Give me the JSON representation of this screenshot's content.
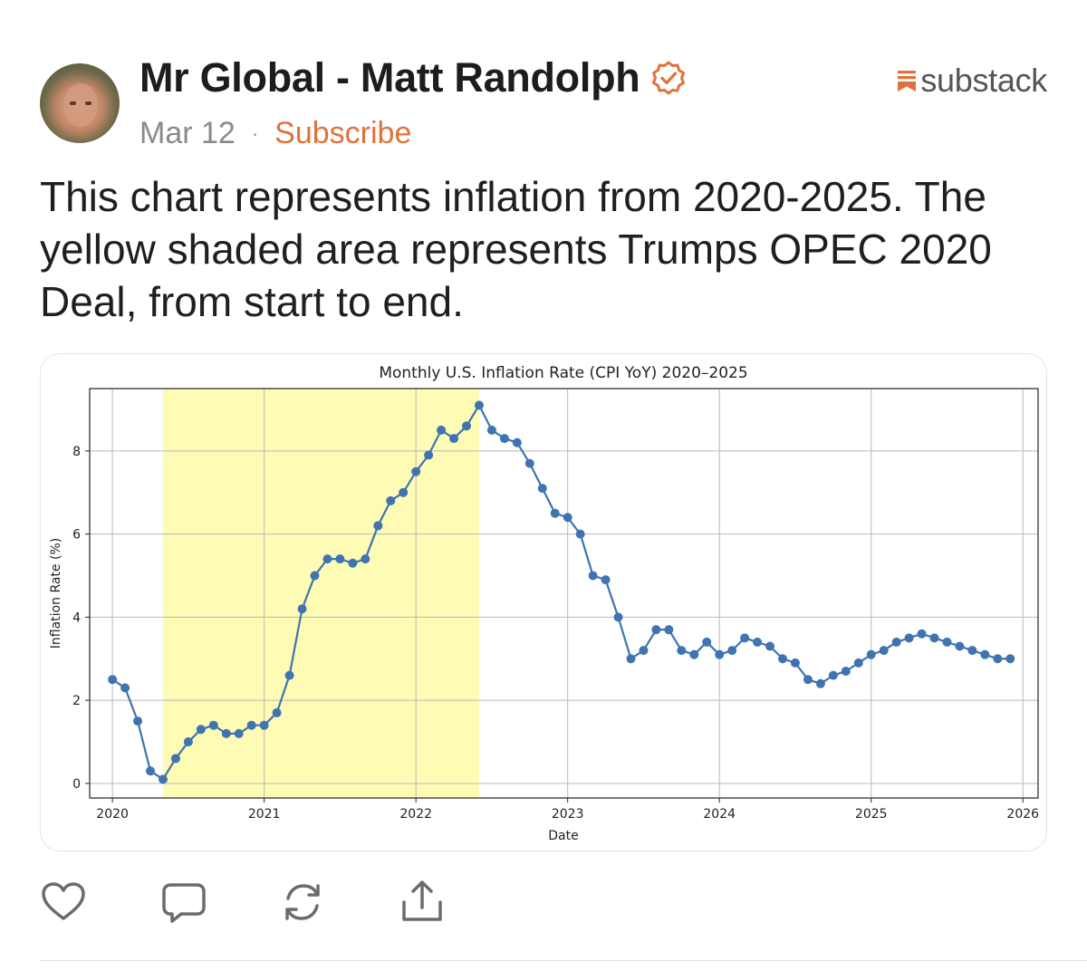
{
  "post": {
    "author": "Mr Global - Matt Randolph",
    "date": "Mar 12",
    "separator": "·",
    "subscribe_label": "Subscribe",
    "brand": "substack",
    "text": "This chart represents inflation from 2020-2025. The yellow shaded area represents Trumps OPEC 2020 Deal, from start to end."
  },
  "colors": {
    "accent": "#e0723a",
    "line": "#3f74b0",
    "shade": "#fdfbb4"
  },
  "actions": [
    {
      "name": "like",
      "icon": "heart-icon"
    },
    {
      "name": "comment",
      "icon": "comment-icon"
    },
    {
      "name": "restack",
      "icon": "restack-icon"
    },
    {
      "name": "share",
      "icon": "share-icon"
    }
  ],
  "chart_data": {
    "type": "line",
    "title": "Monthly U.S. Inflation Rate (CPI YoY) 2020–2025",
    "xlabel": "Date",
    "ylabel": "Inflation Rate (%)",
    "xlim": [
      2019.85,
      2026.1
    ],
    "ylim": [
      -0.35,
      9.5
    ],
    "xticks": [
      2020,
      2021,
      2022,
      2023,
      2024,
      2025,
      2026
    ],
    "yticks": [
      0,
      2,
      4,
      6,
      8
    ],
    "grid": true,
    "shaded_region": {
      "start": 2020.333,
      "end": 2022.417
    },
    "series": [
      {
        "name": "Inflation Rate",
        "start": 2020.0,
        "step_months": 1,
        "values": [
          2.5,
          2.3,
          1.5,
          0.3,
          0.1,
          0.6,
          1.0,
          1.3,
          1.4,
          1.2,
          1.2,
          1.4,
          1.4,
          1.7,
          2.6,
          4.2,
          5.0,
          5.4,
          5.4,
          5.3,
          5.4,
          6.2,
          6.8,
          7.0,
          7.5,
          7.9,
          8.5,
          8.3,
          8.6,
          9.1,
          8.5,
          8.3,
          8.2,
          7.7,
          7.1,
          6.5,
          6.4,
          6.0,
          5.0,
          4.9,
          4.0,
          3.0,
          3.2,
          3.7,
          3.7,
          3.2,
          3.1,
          3.4,
          3.1,
          3.2,
          3.5,
          3.4,
          3.3,
          3.0,
          2.9,
          2.5,
          2.4,
          2.6,
          2.7,
          2.9,
          3.1,
          3.2,
          3.4,
          3.5,
          3.6,
          3.5,
          3.4,
          3.3,
          3.2,
          3.1,
          3.0,
          3.0
        ]
      }
    ]
  }
}
